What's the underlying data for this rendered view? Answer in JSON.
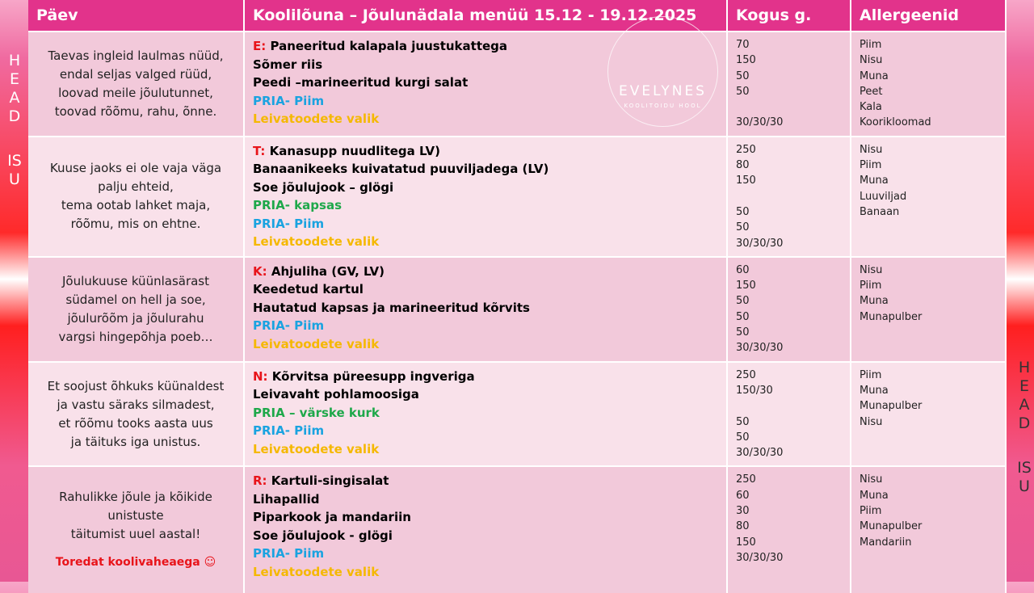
{
  "side": {
    "left": [
      "HEAD",
      "ISU"
    ],
    "right": [
      "HEAD",
      "ISU"
    ]
  },
  "logo": {
    "name": "EVELYNES",
    "tagline": "KOOLITOIDU HOOL"
  },
  "header": [
    "Päev",
    "Koolilõuna – Jõulunädala menüü 15.12 - 19.12.2025",
    "Kogus g.",
    "Allergeenid"
  ],
  "rows": [
    {
      "poem": [
        "Taevas ingleid laulmas nüüd,",
        "endal seljas valged rüüd,",
        "loovad meile jõulutunnet,",
        "toovad rõõmu, rahu, õnne."
      ],
      "day": "E:",
      "menu": [
        {
          "text": "Paneeritud kalapala juustukattega",
          "color": "#000000"
        },
        {
          "text": "Sõmer riis",
          "color": "#000000"
        },
        {
          "text": "Peedi –marineeritud kurgi salat",
          "color": "#000000"
        },
        {
          "text": "PRIA- Piim",
          "color": "#1aa3e0"
        },
        {
          "text": "Leivatoodete valik",
          "color": "#f5b800"
        }
      ],
      "amounts": [
        "70",
        "150",
        "50",
        "50",
        null,
        "30/30/30"
      ],
      "allergens": [
        "Piim",
        "Nisu",
        "Muna",
        "Peet",
        "Kala",
        "Koorikloomad"
      ]
    },
    {
      "poem": [
        "Kuuse jaoks ei ole vaja väga",
        "palju ehteid,",
        "tema ootab lahket maja,",
        "rõõmu, mis on ehtne."
      ],
      "day": "T:",
      "menu": [
        {
          "text": "Kanasupp nuudlitega LV)",
          "color": "#000000"
        },
        {
          "text": "Banaanikeeks kuivatatud puuviljadega (LV)",
          "color": "#000000"
        },
        {
          "text": "Soe jõulujook – glögi",
          "color": "#000000"
        },
        {
          "text": "PRIA- kapsas",
          "color": "#1ea84a"
        },
        {
          "text": "PRIA- Piim",
          "color": "#1aa3e0"
        },
        {
          "text": "Leivatoodete valik",
          "color": "#f5b800"
        }
      ],
      "amounts": [
        "250",
        "80",
        "150",
        null,
        "50",
        "50",
        "30/30/30"
      ],
      "allergens": [
        "Nisu",
        "Piim",
        "Muna",
        "Luuviljad",
        "Banaan"
      ]
    },
    {
      "poem": [
        "Jõulukuuse küünlasärast",
        "südamel on hell ja soe,",
        "jõulurõõm ja jõulurahu",
        "vargsi hingepõhja poeb…"
      ],
      "day": "K:",
      "menu": [
        {
          "text": "Ahjuliha (GV, LV)",
          "color": "#000000"
        },
        {
          "text": "Keedetud kartul",
          "color": "#000000"
        },
        {
          "text": "Hautatud kapsas ja marineeritud kõrvits",
          "color": "#000000"
        },
        {
          "text": "PRIA- Piim",
          "color": "#1aa3e0"
        },
        {
          "text": "Leivatoodete valik",
          "color": "#f5b800"
        }
      ],
      "amounts": [
        "60",
        "150",
        "50",
        "50",
        "50",
        "30/30/30"
      ],
      "allergens": [
        "Nisu",
        "Piim",
        "Muna",
        "Munapulber"
      ]
    },
    {
      "poem": [
        "Et soojust õhkuks küünaldest",
        "ja vastu säraks silmadest,",
        "et rõõmu tooks aasta uus",
        "ja täituks iga unistus."
      ],
      "day": "N:",
      "menu": [
        {
          "text": "Kõrvitsa püreesupp ingveriga",
          "color": "#000000"
        },
        {
          "text": "Leivavaht pohlamoosiga",
          "color": "#000000"
        },
        {
          "text": "PRIA – värske kurk",
          "color": "#1ea84a"
        },
        {
          "text": "PRIA- Piim",
          "color": "#1aa3e0"
        },
        {
          "text": "Leivatoodete valik",
          "color": "#f5b800"
        }
      ],
      "amounts": [
        "250",
        "150/30",
        null,
        "50",
        "50",
        "30/30/30"
      ],
      "allergens": [
        "Piim",
        "Muna",
        "Munapulber",
        "Nisu"
      ]
    },
    {
      "poem": [
        "Rahulikke jõule ja kõikide",
        "unistuste",
        "täitumist uuel aastal!"
      ],
      "closing": "Toredat koolivaheaega ☺",
      "day": "R:",
      "menu": [
        {
          "text": "Kartuli-singisalat",
          "color": "#000000"
        },
        {
          "text": "Lihapallid",
          "color": "#000000"
        },
        {
          "text": "Piparkook ja mandariin",
          "color": "#000000"
        },
        {
          "text": "Soe jõulujook - glögi",
          "color": "#000000"
        },
        {
          "text": "PRIA- Piim",
          "color": "#1aa3e0"
        },
        {
          "text": "Leivatoodete valik",
          "color": "#f5b800"
        }
      ],
      "amounts": [
        "250",
        "60",
        "30",
        "80",
        "150",
        "30/30/30"
      ],
      "allergens": [
        "Nisu",
        "Muna",
        "Piim",
        "Munapulber",
        "Mandariin"
      ]
    }
  ]
}
